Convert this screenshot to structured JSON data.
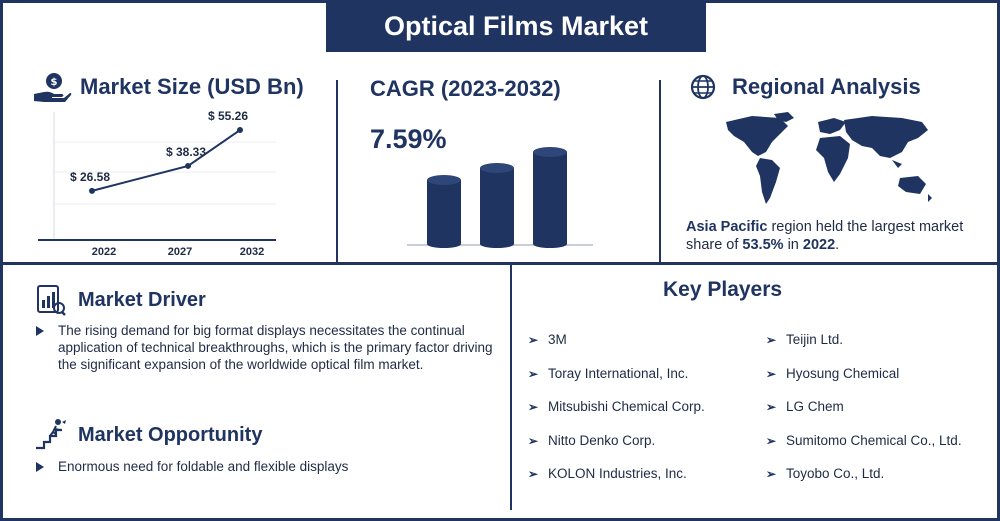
{
  "title": "Optical Films Market",
  "market_size": {
    "heading": "Market Size (USD Bn)",
    "icon": "money-hand-icon",
    "chart_data": {
      "type": "line",
      "categories": [
        "2022",
        "2027",
        "2032"
      ],
      "values": [
        26.58,
        38.33,
        55.26
      ],
      "value_labels": [
        "$ 26.58",
        "$ 38.33",
        "$ 55.26"
      ],
      "title": "",
      "xlabel": "",
      "ylabel": ""
    }
  },
  "cagr": {
    "heading": "CAGR (2023-2032)",
    "value": "7.59%"
  },
  "regional": {
    "heading": "Regional Analysis",
    "icon": "globe-icon",
    "text_prefix": "Asia Pacific",
    "text_mid": " region held the largest market share of ",
    "share": "53.5%",
    "text_in": " in ",
    "year": "2022",
    "text_end": "."
  },
  "driver": {
    "heading": "Market Driver",
    "icon": "report-chart-icon",
    "text": "The rising demand for big format displays necessitates the continual application of technical breakthroughs, which is the primary factor driving the significant expansion of the worldwide optical film market."
  },
  "opportunity": {
    "heading": "Market Opportunity",
    "icon": "stairs-climb-icon",
    "text": "Enormous need for foldable and flexible displays"
  },
  "key_players": {
    "heading": "Key Players",
    "left": [
      "3M",
      "Toray International, Inc.",
      "Mitsubishi Chemical Corp.",
      "Nitto Denko Corp.",
      "KOLON Industries, Inc."
    ],
    "right": [
      "Teijin Ltd.",
      "Hyosung Chemical",
      "LG Chem",
      "Sumitomo Chemical Co., Ltd.",
      "Toyobo Co., Ltd."
    ]
  },
  "colors": {
    "navy": "#1f3461",
    "text": "#1f2a44"
  }
}
